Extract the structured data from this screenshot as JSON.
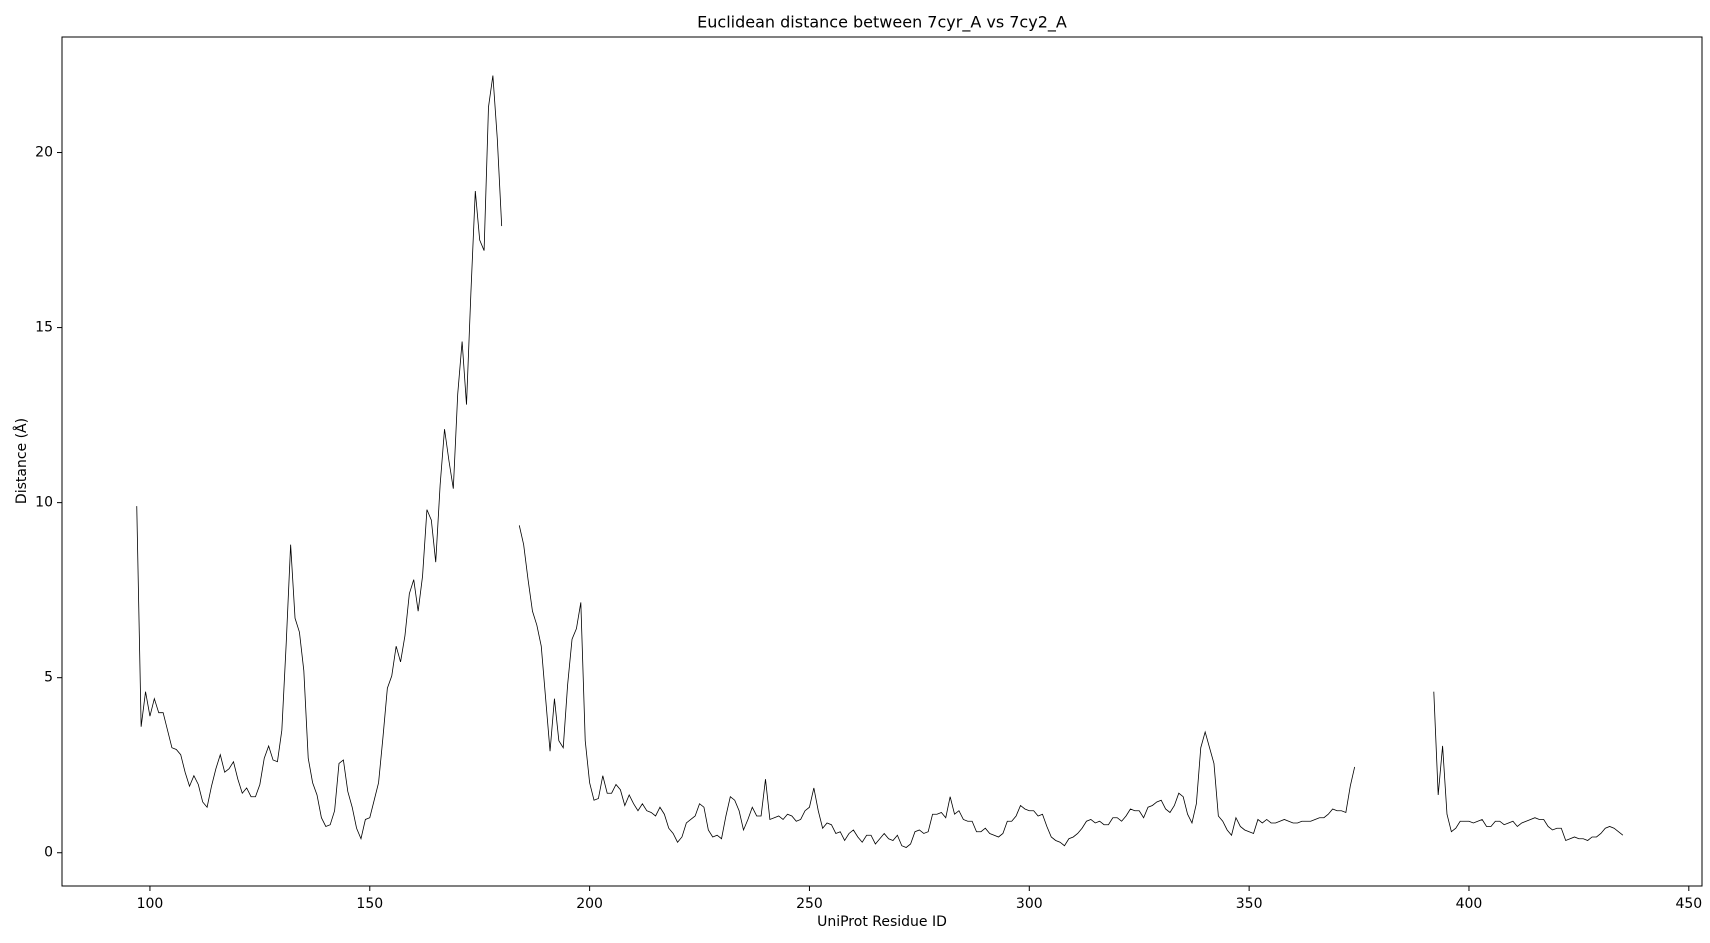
{
  "chart_data": {
    "type": "line",
    "title": "Euclidean distance between 7cyr_A vs 7cy2_A",
    "x_label": "UniProt Residue ID",
    "y_label": "Distance (Å)",
    "color": "#000000",
    "x": [
      97,
      98,
      99,
      100,
      101,
      102,
      103,
      104,
      105,
      106,
      107,
      108,
      109,
      110,
      111,
      112,
      113,
      114,
      115,
      116,
      117,
      118,
      119,
      120,
      121,
      122,
      123,
      124,
      125,
      126,
      127,
      128,
      129,
      130,
      131,
      132,
      133,
      134,
      135,
      136,
      137,
      138,
      139,
      140,
      141,
      142,
      143,
      144,
      145,
      146,
      147,
      148,
      149,
      150,
      151,
      152,
      153,
      154,
      155,
      156,
      157,
      158,
      159,
      160,
      161,
      162,
      163,
      164,
      165,
      166,
      167,
      168,
      169,
      170,
      171,
      172,
      173,
      174,
      175,
      176,
      177,
      178,
      179,
      180,
      181,
      182,
      183,
      184,
      185,
      186,
      187,
      188,
      189,
      190,
      191,
      192,
      193,
      194,
      195,
      196,
      197,
      198,
      199,
      200,
      201,
      202,
      203,
      204,
      205,
      206,
      207,
      208,
      209,
      210,
      211,
      212,
      213,
      214,
      215,
      216,
      217,
      218,
      219,
      220,
      221,
      222,
      223,
      224,
      225,
      226,
      227,
      228,
      229,
      230,
      231,
      232,
      233,
      234,
      235,
      236,
      237,
      238,
      239,
      240,
      241,
      242,
      243,
      244,
      245,
      246,
      247,
      248,
      249,
      250,
      251,
      252,
      253,
      254,
      255,
      256,
      257,
      258,
      259,
      260,
      261,
      262,
      263,
      264,
      265,
      266,
      267,
      268,
      269,
      270,
      271,
      272,
      273,
      274,
      275,
      276,
      277,
      278,
      279,
      280,
      281,
      282,
      283,
      284,
      285,
      286,
      287,
      288,
      289,
      290,
      291,
      292,
      293,
      294,
      295,
      296,
      297,
      298,
      299,
      300,
      301,
      302,
      303,
      304,
      305,
      306,
      307,
      308,
      309,
      310,
      311,
      312,
      313,
      314,
      315,
      316,
      317,
      318,
      319,
      320,
      321,
      322,
      323,
      324,
      325,
      326,
      327,
      328,
      329,
      330,
      331,
      332,
      333,
      334,
      335,
      336,
      337,
      338,
      339,
      340,
      341,
      342,
      343,
      344,
      345,
      346,
      347,
      348,
      349,
      350,
      351,
      352,
      353,
      354,
      355,
      356,
      357,
      358,
      359,
      360,
      361,
      362,
      363,
      364,
      365,
      366,
      367,
      368,
      369,
      370,
      371,
      372,
      373,
      374,
      375,
      376,
      377,
      378,
      379,
      380,
      381,
      382,
      383,
      384,
      385,
      386,
      387,
      388,
      389,
      390,
      391,
      392,
      393,
      394,
      395,
      396,
      397,
      398,
      399,
      400,
      401,
      402,
      403,
      404,
      405,
      406,
      407,
      408,
      409,
      410,
      411,
      412,
      413,
      414,
      415,
      416,
      417,
      418,
      419,
      420,
      421,
      422,
      423,
      424,
      425,
      426,
      427,
      428,
      429,
      430,
      431,
      432,
      433,
      434,
      435
    ],
    "values": [
      9.9,
      3.6,
      4.6,
      3.9,
      4.4,
      4.0,
      4.0,
      3.5,
      3.0,
      2.95,
      2.8,
      2.3,
      1.9,
      2.2,
      1.95,
      1.45,
      1.3,
      1.9,
      2.4,
      2.8,
      2.3,
      2.4,
      2.6,
      2.1,
      1.7,
      1.85,
      1.6,
      1.6,
      1.95,
      2.7,
      3.05,
      2.65,
      2.6,
      3.5,
      6.0,
      8.8,
      6.7,
      6.3,
      5.2,
      2.7,
      2.0,
      1.65,
      1.0,
      0.75,
      0.8,
      1.2,
      2.55,
      2.65,
      1.75,
      1.3,
      0.7,
      0.4,
      0.95,
      1.0,
      1.5,
      2.0,
      3.3,
      4.7,
      5.05,
      5.9,
      5.45,
      6.2,
      7.4,
      7.8,
      6.9,
      7.9,
      9.8,
      9.5,
      8.3,
      10.5,
      12.1,
      11.2,
      10.4,
      13.1,
      14.6,
      12.8,
      16.0,
      18.9,
      17.5,
      17.2,
      21.3,
      22.2,
      20.4,
      17.9,
      null,
      null,
      null,
      9.35,
      8.8,
      7.8,
      6.9,
      6.5,
      5.9,
      4.4,
      2.9,
      4.4,
      3.2,
      3.0,
      4.8,
      6.1,
      6.4,
      7.15,
      3.2,
      2.0,
      1.5,
      1.55,
      2.2,
      1.7,
      1.7,
      1.95,
      1.8,
      1.35,
      1.65,
      1.4,
      1.2,
      1.4,
      1.2,
      1.15,
      1.05,
      1.3,
      1.1,
      0.7,
      0.55,
      0.3,
      0.45,
      0.85,
      0.95,
      1.05,
      1.4,
      1.3,
      0.65,
      0.45,
      0.5,
      0.4,
      1.05,
      1.6,
      1.5,
      1.2,
      0.65,
      0.95,
      1.3,
      1.05,
      1.05,
      2.1,
      0.95,
      1.0,
      1.05,
      0.95,
      1.1,
      1.05,
      0.9,
      0.95,
      1.2,
      1.3,
      1.85,
      1.2,
      0.7,
      0.85,
      0.8,
      0.55,
      0.6,
      0.35,
      0.55,
      0.65,
      0.45,
      0.3,
      0.5,
      0.5,
      0.25,
      0.4,
      0.55,
      0.4,
      0.35,
      0.5,
      0.2,
      0.15,
      0.25,
      0.6,
      0.65,
      0.55,
      0.6,
      1.1,
      1.1,
      1.15,
      1.0,
      1.6,
      1.1,
      1.2,
      0.95,
      0.9,
      0.9,
      0.6,
      0.6,
      0.7,
      0.55,
      0.5,
      0.45,
      0.55,
      0.9,
      0.9,
      1.05,
      1.35,
      1.25,
      1.2,
      1.2,
      1.05,
      1.1,
      0.75,
      0.45,
      0.35,
      0.3,
      0.2,
      0.4,
      0.45,
      0.55,
      0.7,
      0.9,
      0.95,
      0.85,
      0.9,
      0.8,
      0.8,
      1.0,
      1.0,
      0.9,
      1.05,
      1.25,
      1.2,
      1.2,
      1.0,
      1.3,
      1.35,
      1.45,
      1.5,
      1.25,
      1.15,
      1.35,
      1.7,
      1.6,
      1.1,
      0.85,
      1.4,
      3.0,
      3.45,
      3.0,
      2.55,
      1.05,
      0.9,
      0.65,
      0.5,
      1.0,
      0.75,
      0.65,
      0.6,
      0.55,
      0.95,
      0.85,
      0.95,
      0.85,
      0.85,
      0.9,
      0.95,
      0.9,
      0.85,
      0.85,
      0.9,
      0.9,
      0.9,
      0.95,
      1.0,
      1.0,
      1.1,
      1.25,
      1.2,
      1.2,
      1.15,
      1.9,
      2.45,
      null,
      null,
      null,
      null,
      null,
      null,
      null,
      null,
      null,
      null,
      null,
      null,
      null,
      null,
      null,
      null,
      null,
      4.6,
      1.65,
      3.05,
      1.1,
      0.6,
      0.7,
      0.9,
      0.9,
      0.9,
      0.85,
      0.9,
      0.95,
      0.75,
      0.75,
      0.9,
      0.9,
      0.8,
      0.85,
      0.9,
      0.75,
      0.85,
      0.9,
      0.95,
      1.0,
      0.95,
      0.95,
      0.75,
      0.65,
      0.7,
      0.7,
      0.35,
      0.4,
      0.45,
      0.4,
      0.4,
      0.35,
      0.45,
      0.45,
      0.55,
      0.7,
      0.75,
      0.7,
      0.6,
      0.5
    ],
    "xlim": [
      80,
      453
    ],
    "ylim": [
      -0.95,
      23.3
    ],
    "xticks": [
      100,
      150,
      200,
      250,
      300,
      350,
      400,
      450
    ],
    "yticks": [
      0,
      5,
      10,
      15,
      20
    ]
  }
}
